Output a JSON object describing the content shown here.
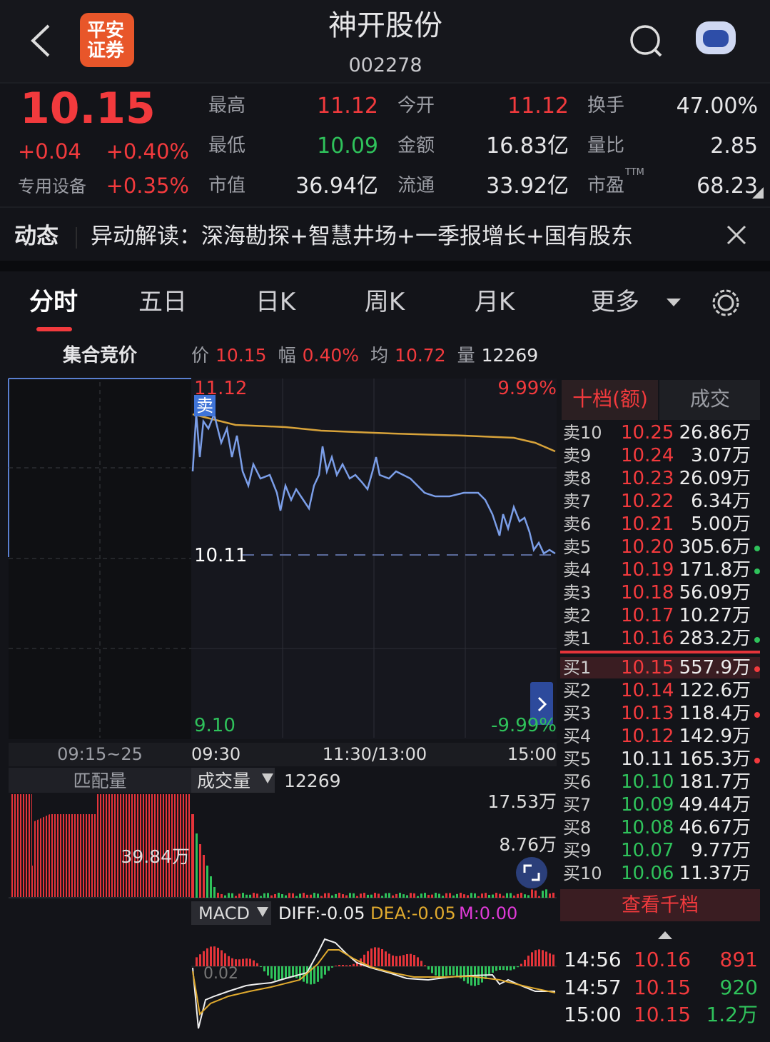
{
  "header": {
    "logo": [
      "平安",
      "证券"
    ],
    "title": "神开股份",
    "code": "002278"
  },
  "quote": {
    "price": "10.15",
    "change": "+0.04",
    "change_pct": "+0.40%",
    "sector": "专用设备",
    "sector_pct": "+0.35%",
    "stats": [
      [
        {
          "label": "最高",
          "value": "11.12",
          "tone": "up"
        },
        {
          "label": "今开",
          "value": "11.12",
          "tone": "up"
        },
        {
          "label": "换手",
          "value": "47.00%"
        }
      ],
      [
        {
          "label": "最低",
          "value": "10.09",
          "tone": "down"
        },
        {
          "label": "金额",
          "value": "16.83亿"
        },
        {
          "label": "量比",
          "value": "2.85"
        }
      ],
      [
        {
          "label": "市值",
          "value": "36.94亿"
        },
        {
          "label": "流通",
          "value": "33.92亿"
        },
        {
          "label": "市盈",
          "sup": "TTM",
          "value": "68.23"
        }
      ]
    ]
  },
  "news": {
    "tag": "动态",
    "text": "异动解读：深海勘探+智慧井场+一季报增长+国有股东"
  },
  "tabs": [
    "分时",
    "五日",
    "日K",
    "周K",
    "月K",
    "更多"
  ],
  "chart": {
    "auction_label": "集合竞价",
    "info": [
      {
        "label": "价",
        "value": "10.15",
        "tone": "up"
      },
      {
        "label": "幅",
        "value": "0.40%",
        "tone": "up"
      },
      {
        "label": "均",
        "value": "10.72",
        "tone": "up"
      },
      {
        "label": "量",
        "value": "12269"
      }
    ],
    "high": "11.12",
    "high_pct": "9.99%",
    "prev_close": "10.11",
    "low": "9.10",
    "low_pct": "-9.99%",
    "sell_badge": "卖",
    "times": [
      "09:15~25",
      "09:30",
      "11:30/13:00",
      "15:00"
    ],
    "match_label": "匹配量",
    "match_value": "39.84万",
    "volume_label": "成交量",
    "volume_value": "12269",
    "volume_max": "17.53万",
    "volume_mid": "8.76万",
    "macd": {
      "label": "MACD",
      "diff": "DIFF:-0.05",
      "dea": "DEA:-0.05",
      "m": "M:0.00",
      "level": "0.02"
    }
  },
  "order_book": {
    "tabs": [
      "十档(额)",
      "成交"
    ],
    "asks": [
      {
        "label": "卖10",
        "price": "10.25",
        "amount": "26.86万"
      },
      {
        "label": "卖9",
        "price": "10.24",
        "amount": "3.07万"
      },
      {
        "label": "卖8",
        "price": "10.23",
        "amount": "26.09万"
      },
      {
        "label": "卖7",
        "price": "10.22",
        "amount": "6.34万"
      },
      {
        "label": "卖6",
        "price": "10.21",
        "amount": "5.00万"
      },
      {
        "label": "卖5",
        "price": "10.20",
        "amount": "305.6万",
        "dot": "green"
      },
      {
        "label": "卖4",
        "price": "10.19",
        "amount": "171.8万",
        "dot": "green"
      },
      {
        "label": "卖3",
        "price": "10.18",
        "amount": "56.09万"
      },
      {
        "label": "卖2",
        "price": "10.17",
        "amount": "10.27万"
      },
      {
        "label": "卖1",
        "price": "10.16",
        "amount": "283.2万",
        "dot": "green"
      }
    ],
    "bids": [
      {
        "label": "买1",
        "price": "10.15",
        "amount": "557.9万",
        "dot": "red"
      },
      {
        "label": "买2",
        "price": "10.14",
        "amount": "122.6万"
      },
      {
        "label": "买3",
        "price": "10.13",
        "amount": "118.4万",
        "dot": "red"
      },
      {
        "label": "买4",
        "price": "10.12",
        "amount": "142.9万"
      },
      {
        "label": "买5",
        "price": "10.11",
        "amount": "165.3万",
        "dot": "red"
      },
      {
        "label": "买6",
        "price": "10.10",
        "amount": "181.7万"
      },
      {
        "label": "买7",
        "price": "10.09",
        "amount": "49.44万"
      },
      {
        "label": "买8",
        "price": "10.08",
        "amount": "46.67万"
      },
      {
        "label": "买9",
        "price": "10.07",
        "amount": "9.77万"
      },
      {
        "label": "买10",
        "price": "10.06",
        "amount": "11.37万"
      }
    ],
    "button": "查看千档",
    "trades": [
      {
        "time": "14:56",
        "price": "10.16",
        "volume": "891",
        "dir": "up"
      },
      {
        "time": "14:57",
        "price": "10.15",
        "volume": "920",
        "dir": "down"
      },
      {
        "time": "15:00",
        "price": "10.15",
        "volume": "1.2万",
        "dir": "down"
      }
    ]
  }
}
